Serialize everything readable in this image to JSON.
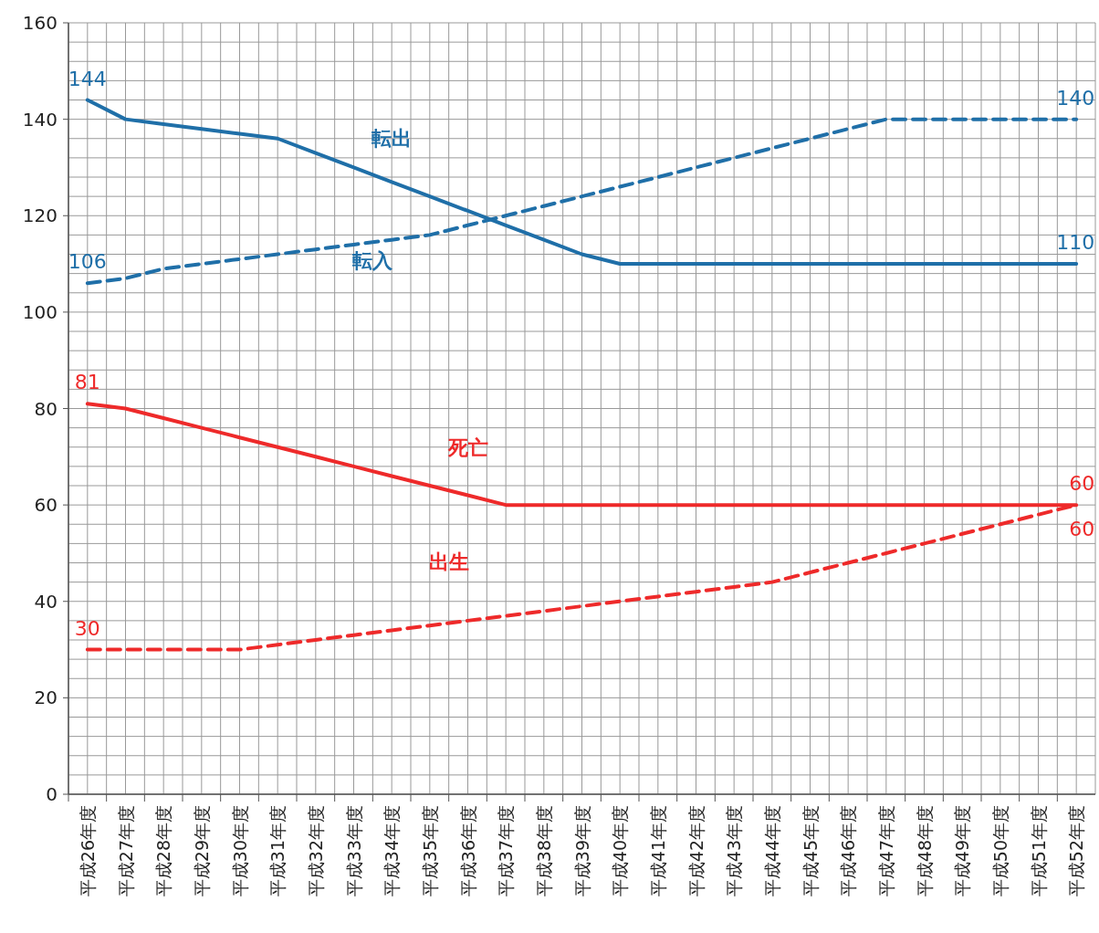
{
  "chart_data": {
    "type": "line",
    "categories": [
      "平成26年度",
      "平成27年度",
      "平成28年度",
      "平成29年度",
      "平成30年度",
      "平成31年度",
      "平成32年度",
      "平成33年度",
      "平成34年度",
      "平成35年度",
      "平成36年度",
      "平成37年度",
      "平成38年度",
      "平成39年度",
      "平成40年度",
      "平成41年度",
      "平成42年度",
      "平成43年度",
      "平成44年度",
      "平成45年度",
      "平成46年度",
      "平成47年度",
      "平成48年度",
      "平成49年度",
      "平成50年度",
      "平成51年度",
      "平成52年度"
    ],
    "series": [
      {
        "name": "転出",
        "color": "#1f6fa8",
        "line_style": "solid",
        "values": [
          144,
          140,
          139,
          138,
          137,
          136,
          133,
          130,
          127,
          124,
          121,
          118,
          115,
          112,
          110,
          110,
          110,
          110,
          110,
          110,
          110,
          110,
          110,
          110,
          110,
          110,
          110
        ],
        "value_labels": [
          "144",
          null,
          null,
          null,
          null,
          null,
          null,
          null,
          null,
          null,
          null,
          null,
          null,
          null,
          null,
          null,
          null,
          null,
          null,
          null,
          null,
          null,
          null,
          null,
          null,
          null,
          "110"
        ]
      },
      {
        "name": "転入",
        "color": "#1f6fa8",
        "line_style": "dashed",
        "values": [
          106,
          107,
          109,
          110,
          111,
          112,
          113,
          114,
          115,
          116,
          118,
          120,
          122,
          124,
          126,
          128,
          130,
          132,
          134,
          136,
          138,
          140,
          140,
          140,
          140,
          140,
          140
        ],
        "value_labels": [
          "106",
          null,
          null,
          null,
          null,
          null,
          null,
          null,
          null,
          null,
          null,
          null,
          null,
          null,
          null,
          null,
          null,
          null,
          null,
          null,
          null,
          null,
          null,
          null,
          null,
          null,
          "140"
        ]
      },
      {
        "name": "死亡",
        "color": "#ee2a2a",
        "line_style": "solid",
        "values": [
          81,
          80,
          78,
          76,
          74,
          72,
          70,
          68,
          66,
          64,
          62,
          60,
          60,
          60,
          60,
          60,
          60,
          60,
          60,
          60,
          60,
          60,
          60,
          60,
          60,
          60,
          60
        ],
        "value_labels": [
          "81",
          null,
          null,
          null,
          null,
          null,
          null,
          null,
          null,
          null,
          null,
          null,
          null,
          null,
          null,
          null,
          null,
          null,
          null,
          null,
          null,
          null,
          null,
          null,
          null,
          null,
          "60"
        ]
      },
      {
        "name": "出生",
        "color": "#ee2a2a",
        "line_style": "dashed",
        "values": [
          30,
          30,
          30,
          30,
          30,
          31,
          32,
          33,
          34,
          35,
          36,
          37,
          38,
          39,
          40,
          41,
          42,
          43,
          44,
          46,
          48,
          50,
          52,
          54,
          56,
          58,
          60
        ],
        "value_labels": [
          "30",
          null,
          null,
          null,
          null,
          null,
          null,
          null,
          null,
          null,
          null,
          null,
          null,
          null,
          null,
          null,
          null,
          null,
          null,
          null,
          null,
          null,
          null,
          null,
          null,
          null,
          "60"
        ]
      }
    ],
    "ylim": [
      0,
      160
    ],
    "yticks": [
      0,
      20,
      40,
      60,
      80,
      100,
      120,
      140,
      160
    ],
    "grid": true,
    "legend": false,
    "marker": "none"
  }
}
